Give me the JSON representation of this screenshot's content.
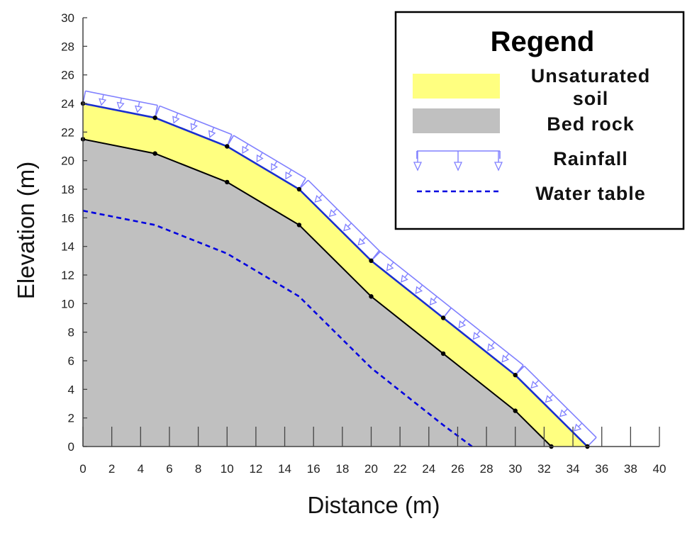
{
  "chart_data": {
    "type": "area",
    "xlabel": "Distance (m)",
    "ylabel": "Elevation (m)",
    "xlim": [
      0,
      40
    ],
    "ylim": [
      0,
      30
    ],
    "x_ticks": [
      "0",
      "2",
      "4",
      "6",
      "8",
      "10",
      "12",
      "14",
      "16",
      "18",
      "20",
      "22",
      "24",
      "26",
      "28",
      "30",
      "32",
      "34",
      "36",
      "38",
      "40"
    ],
    "y_ticks": [
      "0",
      "2",
      "4",
      "6",
      "8",
      "10",
      "12",
      "14",
      "16",
      "18",
      "20",
      "22",
      "24",
      "26",
      "28",
      "30"
    ],
    "grid": false,
    "legend_position": "top-right",
    "series": [
      {
        "name": "Unsaturated soil",
        "kind": "fill",
        "color": "#ffff80",
        "x": [
          0,
          5,
          10,
          15,
          20,
          25,
          30,
          35
        ],
        "y": [
          24,
          23,
          21,
          18,
          13,
          9,
          5,
          0
        ]
      },
      {
        "name": "Bed rock",
        "kind": "fill",
        "color": "#c0c0c0",
        "x": [
          0,
          5,
          10,
          15,
          20,
          25,
          30,
          32.5
        ],
        "y": [
          21.5,
          20.5,
          18.5,
          15.5,
          10.5,
          6.5,
          2.5,
          0
        ]
      },
      {
        "name": "Water table",
        "kind": "dashed-line",
        "color": "#0000e0",
        "x": [
          0,
          5,
          10,
          15,
          20,
          25,
          27
        ],
        "y": [
          16.5,
          15.5,
          13.5,
          10.5,
          5.5,
          1.5,
          0
        ]
      },
      {
        "name": "Rainfall",
        "kind": "boundary-arrows",
        "color": "#8080ff"
      }
    ],
    "legend": {
      "title": "Regend",
      "items": [
        {
          "key": "soil",
          "lines": [
            "Unsaturated",
            "soil"
          ],
          "color": "#ffff80"
        },
        {
          "key": "rock",
          "lines": [
            "Bed rock"
          ],
          "color": "#c0c0c0"
        },
        {
          "key": "rain",
          "lines": [
            "Rainfall"
          ],
          "color": "#8080ff"
        },
        {
          "key": "water",
          "lines": [
            "Water table"
          ],
          "color": "#0000e0"
        }
      ]
    }
  }
}
